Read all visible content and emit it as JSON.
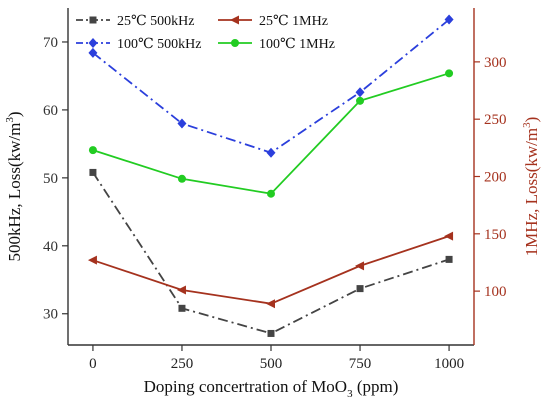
{
  "chart_data": {
    "type": "line",
    "xlabel_parts": [
      "Doping concertration of MoO",
      "3",
      " (ppm)"
    ],
    "ylabel_left_parts": [
      "500kHz,  Loss(kw/m",
      "3",
      ")"
    ],
    "ylabel_right_parts": [
      "1MHz,  Loss(kw/m",
      "3",
      ")"
    ],
    "x": [
      0,
      250,
      500,
      750,
      1000
    ],
    "xlim": [
      -70,
      1070
    ],
    "ylim_left": [
      25.4,
      75
    ],
    "ylim_right": [
      53,
      347
    ],
    "x_ticks": [
      "0",
      "250",
      "500",
      "750",
      "1000"
    ],
    "y_ticks_left": [
      "30",
      "40",
      "50",
      "60",
      "70"
    ],
    "y_ticks_right": [
      "100",
      "150",
      "200",
      "250",
      "300"
    ],
    "grid": false,
    "legend_position": "top",
    "series": [
      {
        "name": "25℃  500kHz",
        "axis": "left",
        "values": [
          50.8,
          30.8,
          27.1,
          33.7,
          38.0
        ],
        "color": "#444444",
        "dash": "dashdot",
        "marker": "square"
      },
      {
        "name": "100℃ 500kHz",
        "axis": "left",
        "values": [
          68.4,
          58.0,
          53.7,
          62.6,
          73.3
        ],
        "color": "#2b3fdc",
        "dash": "dashdot",
        "marker": "diamond"
      },
      {
        "name": "25℃  1MHz",
        "axis": "right",
        "values": [
          127,
          101,
          89,
          122,
          148
        ],
        "color": "#a5321e",
        "dash": "solid",
        "marker": "left-triangle"
      },
      {
        "name": "100℃ 1MHz",
        "axis": "right",
        "values": [
          223,
          198,
          185,
          266,
          290
        ],
        "color": "#22cc22",
        "dash": "solid",
        "marker": "circle"
      }
    ]
  }
}
